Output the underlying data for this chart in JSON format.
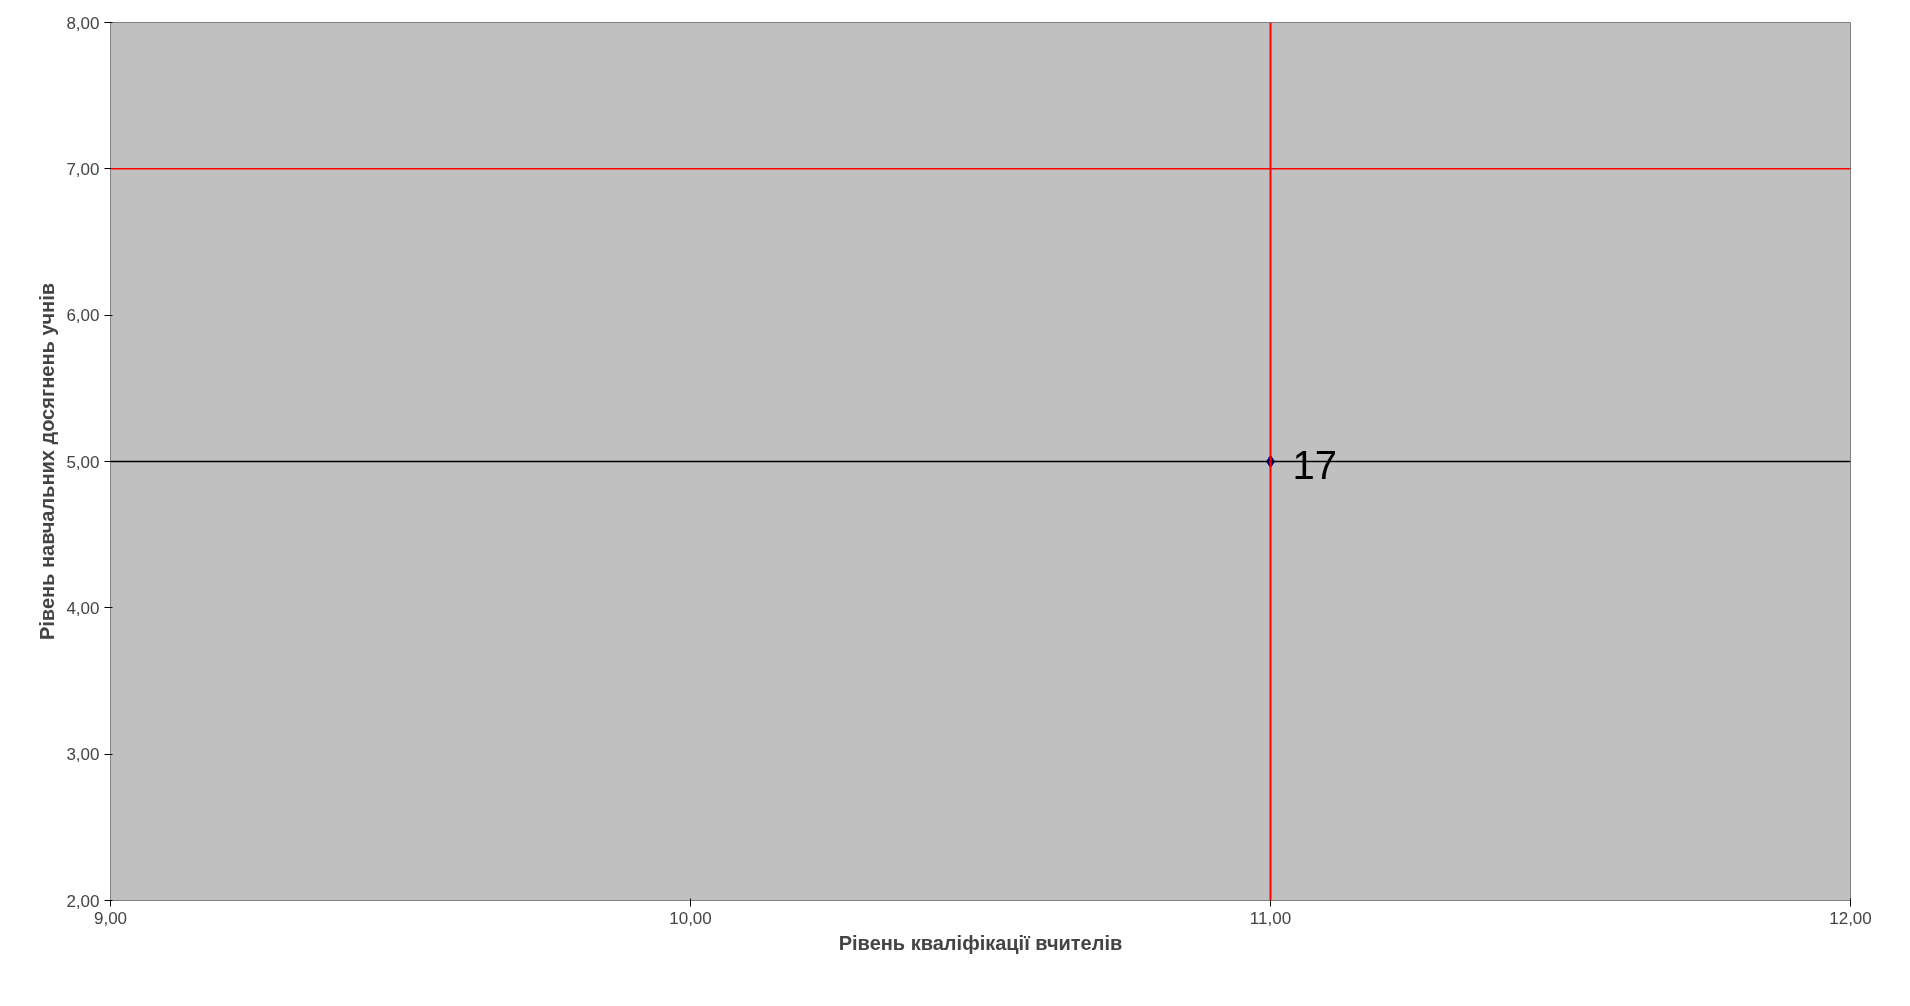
{
  "chart_data": {
    "type": "scatter",
    "xlabel": "Рівень кваліфікації вчителів",
    "ylabel": "Рівень навчальних досягнень учнів",
    "x": [
      11
    ],
    "series": [
      {
        "color": "#000080",
        "values": [
          5
        ]
      }
    ],
    "annotations": [
      {
        "text": "17",
        "x": 11,
        "y": 5
      }
    ],
    "marker": "diamond",
    "grid": false,
    "xlim": [
      9,
      12
    ],
    "ylim": [
      2,
      8
    ],
    "xticks": [
      {
        "value": 9,
        "label": "9,00"
      },
      {
        "value": 10,
        "label": "10,00"
      },
      {
        "value": 11,
        "label": "11,00"
      },
      {
        "value": 12,
        "label": "12,00"
      }
    ],
    "yticks": [
      {
        "value": 2,
        "label": "2,00"
      },
      {
        "value": 3,
        "label": "3,00"
      },
      {
        "value": 4,
        "label": "4,00"
      },
      {
        "value": 5,
        "label": "5,00"
      },
      {
        "value": 6,
        "label": "6,00"
      },
      {
        "value": 7,
        "label": "7,00"
      },
      {
        "value": 8,
        "label": "8,00"
      }
    ],
    "ref_lines": [
      {
        "axis": "y",
        "value": 5,
        "color": "#000000"
      },
      {
        "axis": "x",
        "value": 11,
        "color": "#ff0000"
      },
      {
        "axis": "y",
        "value": 7,
        "color": "#ff0000"
      }
    ]
  }
}
